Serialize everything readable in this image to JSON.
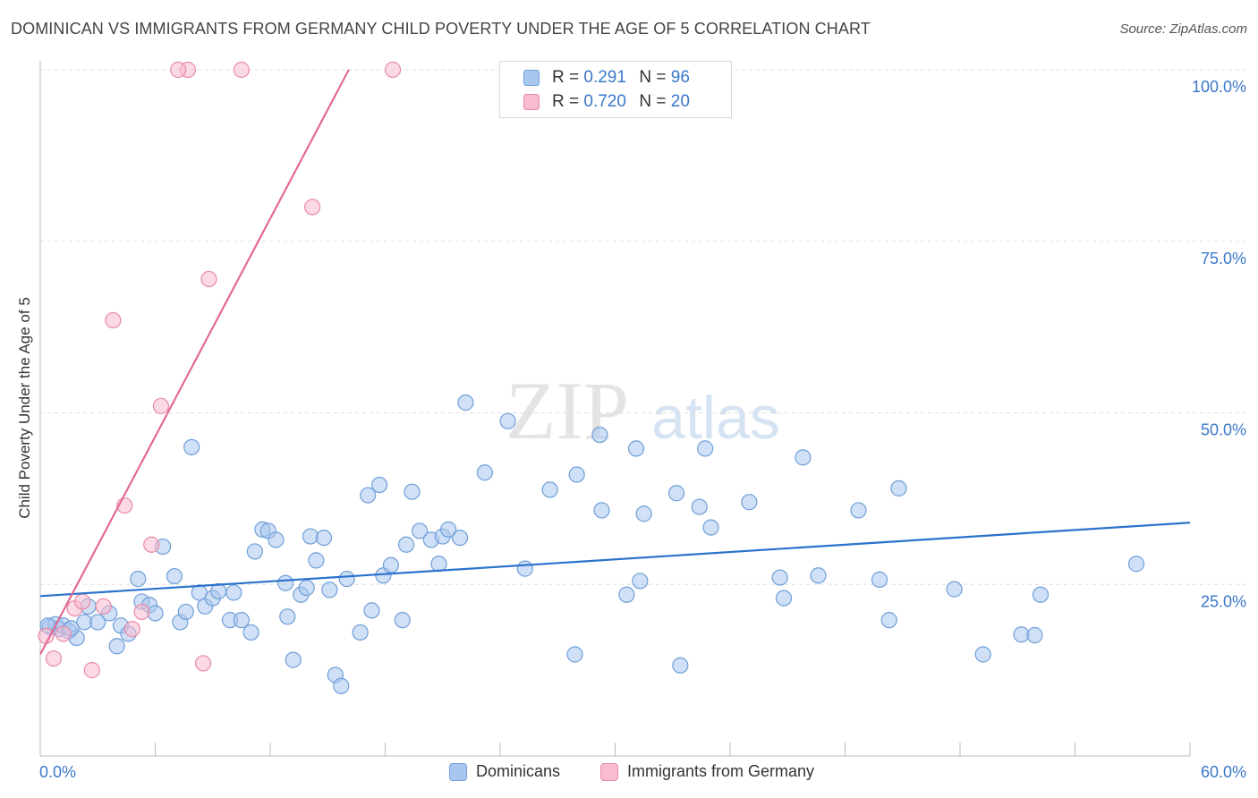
{
  "title": "DOMINICAN VS IMMIGRANTS FROM GERMANY CHILD POVERTY UNDER THE AGE OF 5 CORRELATION CHART",
  "source": "Source: ZipAtlas.com",
  "watermark": {
    "zip": "ZIP",
    "atlas": "atlas"
  },
  "legend": {
    "rows": [
      {
        "r_label": "R =",
        "r_value": "0.291",
        "n_label": "N =",
        "n_value": "96"
      },
      {
        "r_label": "R =",
        "r_value": "0.720",
        "n_label": "N =",
        "n_value": "20"
      }
    ]
  },
  "colors": {
    "blue_fill": "#a9c7ee",
    "blue_stroke": "#6f9fd8",
    "blue_line": "#2a72cc",
    "pink_fill": "#f7bcd0",
    "pink_stroke": "#e88aa9",
    "pink_line": "#e26a94",
    "axis_text": "#3a78c9",
    "grid": "#dddddd"
  },
  "chart_data": {
    "type": "scatter",
    "title": "DOMINICAN VS IMMIGRANTS FROM GERMANY CHILD POVERTY UNDER THE AGE OF 5 CORRELATION CHART",
    "xlabel": "",
    "ylabel": "Child Poverty Under the Age of 5",
    "xlim": [
      0,
      60
    ],
    "ylim": [
      0,
      100
    ],
    "x_tick_labels": [
      "0.0%",
      "60.0%"
    ],
    "y_ticks": [
      25,
      50,
      75,
      100
    ],
    "y_tick_labels": [
      "25.0%",
      "50.0%",
      "75.0%",
      "100.0%"
    ],
    "grid": true,
    "legend_position": "top-center",
    "series": [
      {
        "name": "Dominicans",
        "r": 0.291,
        "n": 96,
        "trend": {
          "x": [
            0,
            60
          ],
          "y": [
            23.3,
            34.0
          ]
        },
        "points": [
          [
            0.5,
            18.8
          ],
          [
            0.8,
            19.2
          ],
          [
            1.0,
            18.5
          ],
          [
            1.2,
            19.0
          ],
          [
            1.5,
            18.2
          ],
          [
            1.9,
            17.2
          ],
          [
            2.3,
            19.5
          ],
          [
            2.5,
            21.8
          ],
          [
            3.0,
            19.5
          ],
          [
            3.6,
            20.8
          ],
          [
            4.0,
            16.0
          ],
          [
            4.2,
            19.0
          ],
          [
            4.6,
            17.8
          ],
          [
            5.1,
            25.8
          ],
          [
            5.3,
            22.5
          ],
          [
            5.7,
            22.0
          ],
          [
            6.0,
            20.8
          ],
          [
            6.4,
            30.5
          ],
          [
            7.0,
            26.2
          ],
          [
            7.3,
            19.5
          ],
          [
            7.6,
            21.0
          ],
          [
            7.9,
            45.0
          ],
          [
            8.3,
            23.8
          ],
          [
            8.6,
            21.8
          ],
          [
            9.0,
            23.0
          ],
          [
            9.3,
            24.0
          ],
          [
            9.9,
            19.8
          ],
          [
            10.1,
            23.8
          ],
          [
            10.5,
            19.8
          ],
          [
            11.0,
            18.0
          ],
          [
            11.2,
            29.8
          ],
          [
            11.6,
            33.0
          ],
          [
            11.9,
            32.8
          ],
          [
            12.3,
            31.5
          ],
          [
            12.8,
            25.2
          ],
          [
            12.9,
            20.3
          ],
          [
            13.2,
            14.0
          ],
          [
            13.6,
            23.5
          ],
          [
            13.9,
            24.5
          ],
          [
            14.1,
            32.0
          ],
          [
            14.4,
            28.5
          ],
          [
            14.8,
            31.8
          ],
          [
            15.1,
            24.2
          ],
          [
            15.4,
            11.8
          ],
          [
            15.7,
            10.2
          ],
          [
            16.0,
            25.8
          ],
          [
            16.7,
            18.0
          ],
          [
            17.1,
            38.0
          ],
          [
            17.3,
            21.2
          ],
          [
            17.7,
            39.5
          ],
          [
            17.9,
            26.3
          ],
          [
            18.3,
            27.8
          ],
          [
            18.9,
            19.8
          ],
          [
            19.1,
            30.8
          ],
          [
            19.4,
            38.5
          ],
          [
            19.8,
            32.8
          ],
          [
            20.4,
            31.5
          ],
          [
            20.8,
            28.0
          ],
          [
            21.0,
            32.0
          ],
          [
            21.3,
            33.0
          ],
          [
            21.9,
            31.8
          ],
          [
            22.2,
            51.5
          ],
          [
            23.2,
            41.3
          ],
          [
            24.4,
            48.8
          ],
          [
            25.3,
            27.3
          ],
          [
            26.6,
            38.8
          ],
          [
            27.9,
            14.8
          ],
          [
            28.0,
            41.0
          ],
          [
            29.2,
            46.8
          ],
          [
            29.3,
            35.8
          ],
          [
            30.6,
            23.5
          ],
          [
            31.1,
            44.8
          ],
          [
            31.3,
            25.5
          ],
          [
            31.5,
            35.3
          ],
          [
            33.2,
            38.3
          ],
          [
            33.4,
            13.2
          ],
          [
            34.4,
            36.3
          ],
          [
            34.7,
            44.8
          ],
          [
            35.0,
            33.3
          ],
          [
            37.0,
            37.0
          ],
          [
            38.6,
            26.0
          ],
          [
            38.8,
            23.0
          ],
          [
            39.8,
            43.5
          ],
          [
            40.6,
            26.3
          ],
          [
            42.7,
            35.8
          ],
          [
            43.8,
            25.7
          ],
          [
            44.3,
            19.8
          ],
          [
            44.8,
            39.0
          ],
          [
            47.7,
            24.3
          ],
          [
            49.2,
            14.8
          ],
          [
            51.2,
            17.7
          ],
          [
            51.9,
            17.6
          ],
          [
            52.2,
            23.5
          ],
          [
            57.2,
            28.0
          ],
          [
            0.4,
            19.0
          ],
          [
            1.6,
            18.6
          ]
        ]
      },
      {
        "name": "Immigrants from Germany",
        "r": 0.72,
        "n": 20,
        "trend": {
          "x": [
            0,
            16.1
          ],
          "y": [
            14.8,
            100
          ]
        },
        "points": [
          [
            0.3,
            17.5
          ],
          [
            0.7,
            14.2
          ],
          [
            1.2,
            17.8
          ],
          [
            1.8,
            21.5
          ],
          [
            2.2,
            22.5
          ],
          [
            2.7,
            12.5
          ],
          [
            3.3,
            21.8
          ],
          [
            3.8,
            63.5
          ],
          [
            4.4,
            36.5
          ],
          [
            4.8,
            18.5
          ],
          [
            5.3,
            21.0
          ],
          [
            5.8,
            30.8
          ],
          [
            6.3,
            51.0
          ],
          [
            7.7,
            100.0
          ],
          [
            7.2,
            100.0
          ],
          [
            8.5,
            13.5
          ],
          [
            8.8,
            69.5
          ],
          [
            10.5,
            100.0
          ],
          [
            14.2,
            80.0
          ],
          [
            18.4,
            100.0
          ]
        ]
      }
    ]
  },
  "bottom_legend": {
    "dominicans": "Dominicans",
    "germany": "Immigrants from Germany"
  }
}
